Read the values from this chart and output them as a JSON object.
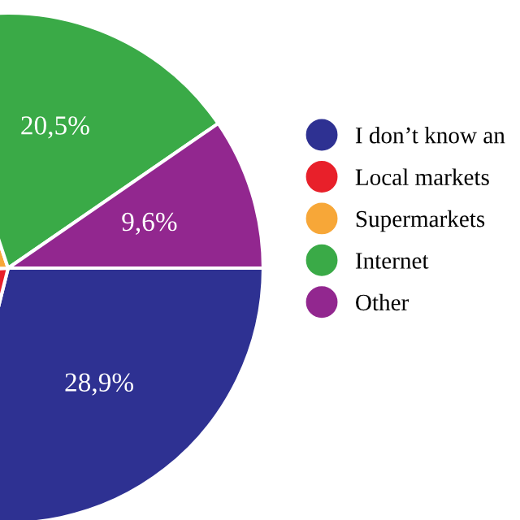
{
  "chart_data": {
    "type": "pie",
    "categories": [
      "I don’t know an",
      "Local markets",
      "Supermarkets",
      "Internet",
      "Other"
    ],
    "values": [
      28.9,
      20.4,
      20.6,
      20.5,
      9.6
    ],
    "colors": [
      "#2e3192",
      "#e8202a",
      "#f7a738",
      "#3aaa47",
      "#92278f"
    ],
    "value_labels": [
      "28,9%",
      null,
      null,
      "20,5%",
      "9,6%"
    ],
    "legend": "right"
  }
}
